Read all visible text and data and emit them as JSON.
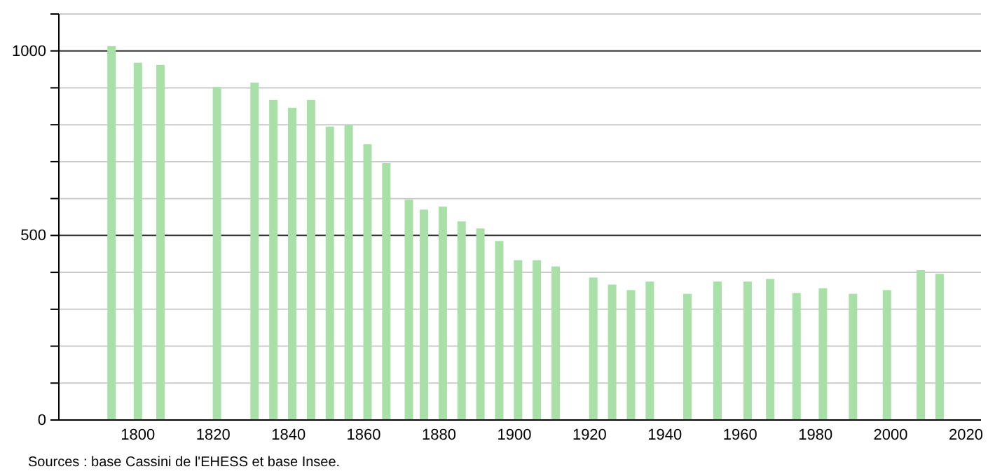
{
  "chart_data": {
    "type": "bar",
    "x": [
      1793,
      1800,
      1806,
      1821,
      1831,
      1836,
      1841,
      1846,
      1851,
      1856,
      1861,
      1866,
      1872,
      1876,
      1881,
      1886,
      1891,
      1896,
      1901,
      1906,
      1911,
      1921,
      1926,
      1931,
      1936,
      1946,
      1954,
      1962,
      1968,
      1975,
      1982,
      1990,
      1999,
      2008,
      2013
    ],
    "values": [
      1013,
      968,
      962,
      902,
      914,
      867,
      846,
      867,
      795,
      800,
      747,
      696,
      597,
      570,
      578,
      538,
      519,
      485,
      433,
      433,
      416,
      386,
      367,
      352,
      375,
      342,
      375,
      375,
      382,
      344,
      357,
      342,
      352,
      406,
      396
    ],
    "color": "#a8e0a8",
    "xlim": [
      1779,
      2024
    ],
    "xticks": [
      1800,
      1820,
      1840,
      1860,
      1880,
      1900,
      1920,
      1940,
      1960,
      1980,
      2000,
      2020
    ],
    "ylim": [
      0,
      1100
    ],
    "yticks": [
      0,
      {
        "value": 100,
        "label": null
      },
      {
        "value": 200,
        "label": null
      },
      {
        "value": 300,
        "label": null
      },
      {
        "value": 400,
        "label": null
      },
      500,
      {
        "value": 600,
        "label": null
      },
      {
        "value": 700,
        "label": null
      },
      {
        "value": 800,
        "label": null
      },
      {
        "value": 900,
        "label": null
      },
      1000,
      {
        "value": 1100,
        "label": null
      }
    ],
    "grid": "y",
    "annotations": [
      "Sources : base Cassini de l'EHESS et base Insee."
    ]
  }
}
